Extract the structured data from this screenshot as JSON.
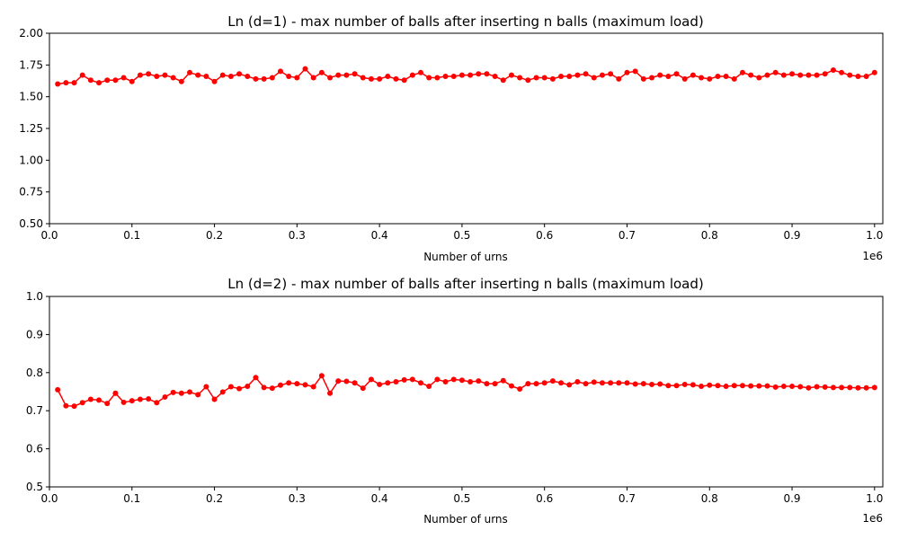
{
  "chart_data": [
    {
      "type": "line",
      "title": "Ln (d=1) - max number of balls after inserting n balls (maximum load)",
      "xlabel": "Number of urns",
      "ylabel": "",
      "x_offset_label": "1e6",
      "xlim": [
        0,
        1010000
      ],
      "ylim": [
        0.5,
        2.0
      ],
      "x_ticks": [
        0,
        100000,
        200000,
        300000,
        400000,
        500000,
        600000,
        700000,
        800000,
        900000,
        1000000
      ],
      "x_tick_labels": [
        "0.0",
        "0.1",
        "0.2",
        "0.3",
        "0.4",
        "0.5",
        "0.6",
        "0.7",
        "0.8",
        "0.9",
        "1.0"
      ],
      "y_ticks": [
        0.5,
        0.75,
        1.0,
        1.25,
        1.5,
        1.75,
        2.0
      ],
      "y_tick_labels": [
        "0.50",
        "0.75",
        "1.00",
        "1.25",
        "1.50",
        "1.75",
        "2.00"
      ],
      "grid": false,
      "color": "#ff0000",
      "x_start": 10000,
      "x_step": 10000,
      "values": [
        1.6,
        1.61,
        1.61,
        1.67,
        1.63,
        1.61,
        1.63,
        1.63,
        1.65,
        1.62,
        1.67,
        1.68,
        1.66,
        1.67,
        1.65,
        1.62,
        1.69,
        1.67,
        1.66,
        1.62,
        1.67,
        1.66,
        1.68,
        1.66,
        1.64,
        1.64,
        1.65,
        1.7,
        1.66,
        1.65,
        1.72,
        1.65,
        1.69,
        1.65,
        1.67,
        1.67,
        1.68,
        1.65,
        1.64,
        1.64,
        1.66,
        1.64,
        1.63,
        1.67,
        1.69,
        1.65,
        1.65,
        1.66,
        1.66,
        1.67,
        1.67,
        1.68,
        1.68,
        1.66,
        1.63,
        1.67,
        1.65,
        1.63,
        1.65,
        1.65,
        1.64,
        1.66,
        1.66,
        1.67,
        1.68,
        1.65,
        1.67,
        1.68,
        1.64,
        1.69,
        1.7,
        1.64,
        1.65,
        1.67,
        1.66,
        1.68,
        1.64,
        1.67,
        1.65,
        1.64,
        1.66,
        1.66,
        1.64,
        1.69,
        1.67,
        1.65,
        1.67,
        1.69,
        1.67,
        1.68,
        1.67,
        1.67,
        1.67,
        1.68,
        1.71,
        1.69,
        1.67,
        1.66,
        1.66,
        1.69
      ]
    },
    {
      "type": "line",
      "title": "Ln (d=2) - max number of balls after inserting n balls (maximum load)",
      "xlabel": "Number of urns",
      "ylabel": "",
      "x_offset_label": "1e6",
      "xlim": [
        0,
        1010000
      ],
      "ylim": [
        0.5,
        1.0
      ],
      "x_ticks": [
        0,
        100000,
        200000,
        300000,
        400000,
        500000,
        600000,
        700000,
        800000,
        900000,
        1000000
      ],
      "x_tick_labels": [
        "0.0",
        "0.1",
        "0.2",
        "0.3",
        "0.4",
        "0.5",
        "0.6",
        "0.7",
        "0.8",
        "0.9",
        "1.0"
      ],
      "y_ticks": [
        0.5,
        0.6,
        0.7,
        0.8,
        0.9,
        1.0
      ],
      "y_tick_labels": [
        "0.5",
        "0.6",
        "0.7",
        "0.8",
        "0.9",
        "1.0"
      ],
      "grid": false,
      "color": "#ff0000",
      "x_start": 10000,
      "x_step": 10000,
      "values": [
        0.755,
        0.713,
        0.712,
        0.721,
        0.73,
        0.728,
        0.719,
        0.746,
        0.722,
        0.726,
        0.73,
        0.731,
        0.721,
        0.736,
        0.748,
        0.746,
        0.749,
        0.742,
        0.763,
        0.73,
        0.749,
        0.763,
        0.758,
        0.764,
        0.787,
        0.761,
        0.759,
        0.767,
        0.773,
        0.771,
        0.768,
        0.763,
        0.792,
        0.746,
        0.778,
        0.777,
        0.773,
        0.759,
        0.782,
        0.769,
        0.773,
        0.776,
        0.781,
        0.782,
        0.773,
        0.764,
        0.782,
        0.776,
        0.782,
        0.78,
        0.776,
        0.778,
        0.771,
        0.771,
        0.779,
        0.765,
        0.757,
        0.771,
        0.771,
        0.773,
        0.778,
        0.773,
        0.768,
        0.776,
        0.771,
        0.775,
        0.773,
        0.773,
        0.773,
        0.773,
        0.77,
        0.771,
        0.769,
        0.77,
        0.766,
        0.766,
        0.769,
        0.768,
        0.764,
        0.767,
        0.766,
        0.764,
        0.766,
        0.766,
        0.765,
        0.765,
        0.765,
        0.762,
        0.764,
        0.764,
        0.763,
        0.76,
        0.763,
        0.762,
        0.761,
        0.761,
        0.761,
        0.76,
        0.76,
        0.761
      ]
    }
  ]
}
